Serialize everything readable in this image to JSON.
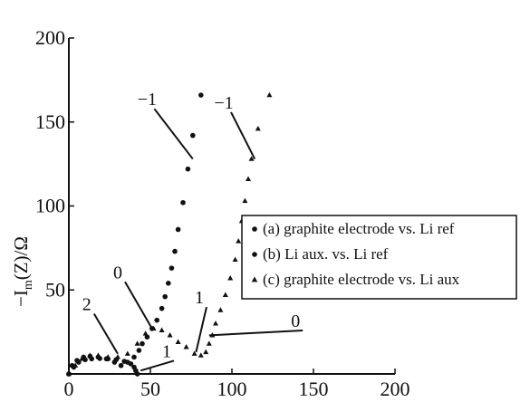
{
  "chart_data": {
    "type": "scatter",
    "ylabel": "-I_m(Z)/Ω",
    "xlim": [
      0,
      200
    ],
    "ylim": [
      0,
      200
    ],
    "x_ticks": [
      "0",
      "50",
      "100",
      "150",
      "200"
    ],
    "y_ticks": [
      "200",
      "150",
      "100",
      "50"
    ],
    "series": [
      {
        "name": "(a) graphite electrode vs. Li ref",
        "marker": "circle",
        "x": [
          0,
          2,
          5,
          9,
          13,
          18,
          23,
          28,
          32,
          36,
          40,
          43,
          45,
          48,
          51,
          54,
          57,
          59,
          61,
          63,
          65,
          67,
          70,
          73,
          76,
          81
        ],
        "y": [
          0,
          5,
          8,
          10,
          10.5,
          10,
          9,
          7,
          5,
          7,
          10,
          14,
          18,
          22,
          27,
          32,
          39,
          46,
          54,
          63,
          73,
          86,
          102,
          122,
          142,
          166
        ]
      },
      {
        "name": "(b) Li aux. vs. Li ref",
        "marker": "circle",
        "x": [
          0,
          3,
          6,
          10,
          14,
          19,
          24,
          29,
          34,
          38,
          40,
          41,
          42
        ],
        "y": [
          0,
          4,
          7,
          8.5,
          9,
          9.2,
          9,
          8.5,
          7.5,
          6,
          4,
          2,
          0
        ]
      },
      {
        "name": "(c) graphite electrode vs. Li aux",
        "marker": "triangle",
        "x": [
          0,
          4,
          8,
          13,
          18,
          24,
          30,
          36,
          42,
          47,
          52,
          57,
          62,
          67,
          72,
          77,
          81,
          84,
          86,
          88,
          90,
          93,
          96,
          99,
          102,
          104,
          106,
          108,
          110,
          112,
          116,
          123
        ],
        "y": [
          0,
          5,
          9,
          11,
          11,
          10,
          10,
          12,
          18,
          24,
          27,
          26,
          23,
          19,
          16,
          12,
          11,
          13,
          18,
          23,
          30,
          38,
          47,
          57,
          68,
          79,
          91,
          103,
          116,
          128,
          146,
          166
        ]
      }
    ],
    "annotations": [
      {
        "text": "−1",
        "x": 48,
        "y": 160,
        "point": [
          76,
          128
        ]
      },
      {
        "text": "−1",
        "x": 95,
        "y": 158,
        "point": [
          114,
          128
        ]
      },
      {
        "text": "0",
        "x": 30,
        "y": 57,
        "point": [
          51,
          27
        ]
      },
      {
        "text": "1",
        "x": 80,
        "y": 42,
        "point": [
          78,
          13
        ]
      },
      {
        "text": "2",
        "x": 11,
        "y": 38,
        "point": [
          30,
          12
        ]
      },
      {
        "text": "1",
        "x": 60,
        "y": 10,
        "point": [
          44,
          2
        ]
      },
      {
        "text": "0",
        "x": 139,
        "y": 28,
        "point": [
          86,
          23
        ]
      }
    ],
    "grid": false,
    "legend": "right"
  }
}
